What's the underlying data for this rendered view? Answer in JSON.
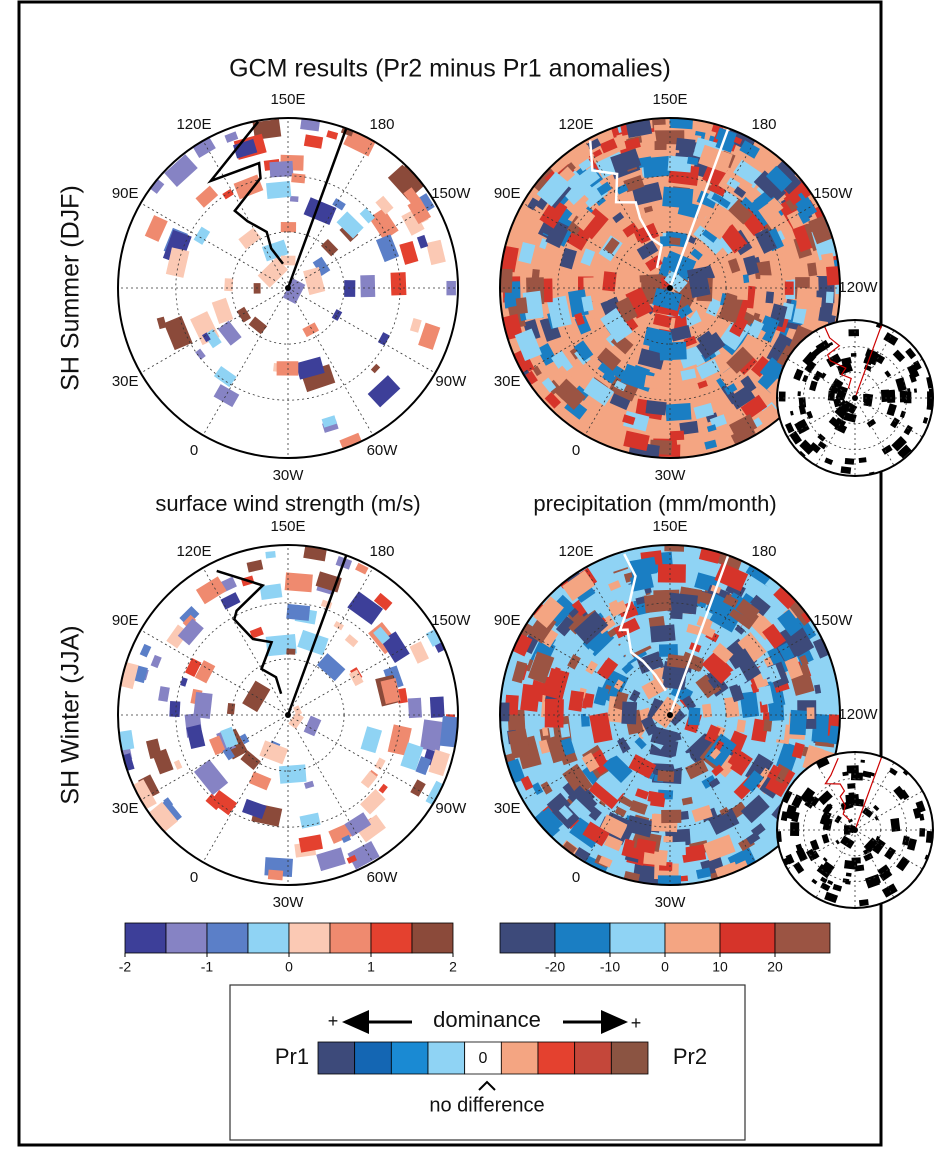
{
  "title": "GCM results (Pr2 minus Pr1 anomalies)",
  "rows": [
    "SH Summer (DJF)",
    "SH Winter (JJA)"
  ],
  "columns": [
    "surface wind strength (m/s)",
    "precipitation (mm/month)"
  ],
  "maps": [
    {
      "lon_labels": [
        "150E",
        "180",
        "150W",
        null,
        "90W",
        "60W",
        "30W",
        "0",
        "30E",
        null,
        "90E",
        "120E"
      ]
    },
    {
      "lon_labels": [
        "150E",
        "180",
        "150W",
        "120W",
        null,
        null,
        "30W",
        "0",
        "30E",
        null,
        "90E",
        "120E"
      ]
    },
    {
      "lon_labels": [
        "150E",
        "180",
        "150W",
        null,
        "90W",
        "60W",
        "30W",
        "0",
        "30E",
        null,
        "90E",
        "120E"
      ]
    },
    {
      "lon_labels": [
        "150E",
        "180",
        "150W",
        "120W",
        null,
        null,
        "30W",
        "0",
        "30E",
        null,
        "90E",
        "120E"
      ]
    }
  ],
  "colorbars": [
    {
      "colors": [
        "#3d3f99",
        "#8683c4",
        "#5b7fc8",
        "#8fd3f4",
        "#fbc9b4",
        "#ef8a6f",
        "#e4412f",
        "#8b4a3a"
      ],
      "range": [
        -2,
        2
      ],
      "ticks": [
        -2,
        -1,
        0,
        1,
        2
      ]
    },
    {
      "colors": [
        "#3d4a7a",
        "#1a7ec3",
        "#8fd3f4",
        "#f4a582",
        "#d6342a",
        "#9b5443"
      ],
      "range": [
        -30,
        30
      ],
      "ticks": [
        -20,
        -10,
        0,
        10,
        20
      ]
    }
  ],
  "legend": {
    "plus_left": "+",
    "dominance": "dominance",
    "plus_right": "+",
    "left": "Pr1",
    "zero": "0",
    "right": "Pr2",
    "no_difference": "no difference",
    "colors": [
      "#3d4a7a",
      "#1466b3",
      "#1a8ad3",
      "#8fd3f4",
      "#ffffff",
      "#f4a582",
      "#e4412f",
      "#c4473a",
      "#8b5442"
    ]
  }
}
